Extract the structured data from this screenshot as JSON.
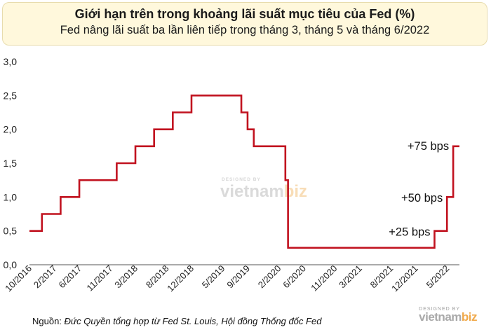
{
  "header": {
    "title": "Giới hạn trên trong khoảng lãi suất mục tiêu của Fed (%)",
    "subtitle": "Fed nâng lãi suất ba lần liên tiếp trong tháng 3, tháng 5 và tháng 6/2022"
  },
  "footer": {
    "source_prefix": "Nguồn: ",
    "source_text": "Đức Quyền tổng hợp từ Fed St. Louis, Hội đồng Thống đốc Fed"
  },
  "watermark": {
    "designed_by": "DESIGNED BY",
    "brand_main": "vietnam",
    "brand_accent": "biz"
  },
  "chart_data": {
    "type": "line",
    "title": "Giới hạn trên trong khoảng lãi suất mục tiêu của Fed (%)",
    "subtitle": "Fed nâng lãi suất ba lần liên tiếp trong tháng 3, tháng 5 và tháng 6/2022",
    "xlabel": "",
    "ylabel": "",
    "ylim": [
      0,
      3.0
    ],
    "yticks": [
      "0,0",
      "0,5",
      "1,0",
      "1,5",
      "2,0",
      "2,5",
      "3,0"
    ],
    "x_tick_labels": [
      "10/2016",
      "2/2017",
      "6/2017",
      "11/2017",
      "3/2018",
      "8/2018",
      "12/2018",
      "5/2019",
      "9/2019",
      "2/2020",
      "6/2020",
      "11/2020",
      "3/2021",
      "8/2021",
      "12/2021",
      "5/2022"
    ],
    "grid": false,
    "line_color": "#c1121f",
    "step": true,
    "series": [
      {
        "steps": [
          {
            "from": "2016-10",
            "value": 0.5
          },
          {
            "from": "2016-12",
            "value": 0.75
          },
          {
            "from": "2017-03",
            "value": 1.0
          },
          {
            "from": "2017-06",
            "value": 1.25
          },
          {
            "from": "2017-12",
            "value": 1.5
          },
          {
            "from": "2018-03",
            "value": 1.75
          },
          {
            "from": "2018-06",
            "value": 2.0
          },
          {
            "from": "2018-09",
            "value": 2.25
          },
          {
            "from": "2018-12",
            "value": 2.5
          },
          {
            "from": "2019-08",
            "value": 2.25
          },
          {
            "from": "2019-09",
            "value": 2.0
          },
          {
            "from": "2019-10",
            "value": 1.75
          },
          {
            "from": "2020-03-03",
            "value": 1.25
          },
          {
            "from": "2020-03-16",
            "value": 0.25
          },
          {
            "from": "2022-03",
            "value": 0.5
          },
          {
            "from": "2022-05",
            "value": 1.0
          },
          {
            "from": "2022-06",
            "value": 1.75
          }
        ],
        "end": "2022-06"
      }
    ],
    "annotations": [
      {
        "text": "+75 bps",
        "near": "2022-06"
      },
      {
        "text": "+50 bps",
        "near": "2022-05"
      },
      {
        "text": "+25 bps",
        "near": "2022-03"
      }
    ]
  }
}
